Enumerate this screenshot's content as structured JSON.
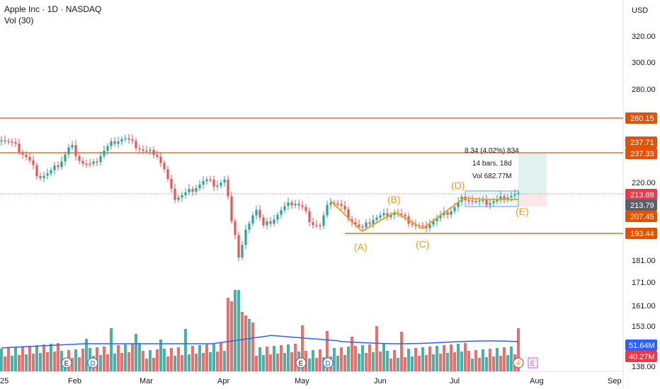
{
  "header": {
    "symbol": "Apple Inc · 1D · NASDAQ",
    "indicator": "Vol (30)",
    "currency": "USD"
  },
  "chart_data": {
    "type": "candlestick",
    "x_ticks": [
      "25",
      "Feb",
      "Mar",
      "Apr",
      "May",
      "Jun",
      "Jul",
      "Aug",
      "Sep"
    ],
    "y_ticks": [
      320,
      300,
      280,
      220,
      181,
      171,
      161,
      153,
      138
    ],
    "y_tick_labels": [
      "320.00",
      "300.00",
      "280.00",
      "220.00",
      "181.00",
      "171.00",
      "161.00",
      "153.00",
      "138.00"
    ],
    "horizontal_levels": [
      {
        "value": 260.15,
        "label": "260.15",
        "color": "#e65100"
      },
      {
        "value": 237.33,
        "label": "237.33",
        "color": "#e65100"
      },
      {
        "value": 193.44,
        "label": "193.44",
        "color": "#e65100"
      }
    ],
    "price_labels": [
      {
        "value": 237.71,
        "label": "237.71",
        "color": "#e65100"
      },
      {
        "value": 213.88,
        "label": "213.88",
        "color": "#f23645"
      },
      {
        "value": 213.79,
        "label": "213.79",
        "color": "#5d606b"
      },
      {
        "value": 207.45,
        "label": "207.45",
        "color": "#e65100"
      }
    ],
    "volume_labels": [
      {
        "label": "51.64M",
        "color": "#2962ff"
      },
      {
        "label": "40.27M",
        "color": "#f23645"
      }
    ],
    "wave_labels": [
      "(A)",
      "(B)",
      "(C)",
      "(D)",
      "(E)"
    ],
    "measure": {
      "line1": "8.34 (4.02%) 834",
      "line2": "14 bars, 18d",
      "line3": "Vol 682.77M"
    },
    "events": [
      "E",
      "D",
      "E",
      "D",
      "E"
    ],
    "colors": {
      "up": "#26a69a",
      "down": "#ef5350",
      "wave": "#f39c12",
      "level": "#e65100",
      "ma": "#2962ff"
    }
  }
}
